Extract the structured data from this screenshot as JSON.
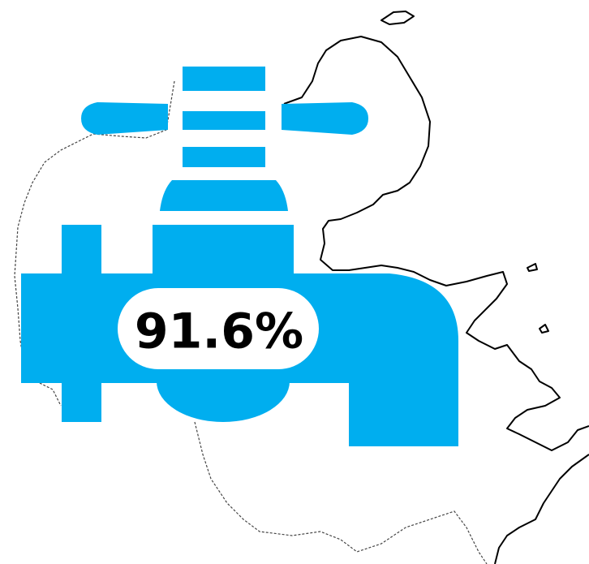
{
  "label": "91.6%"
}
